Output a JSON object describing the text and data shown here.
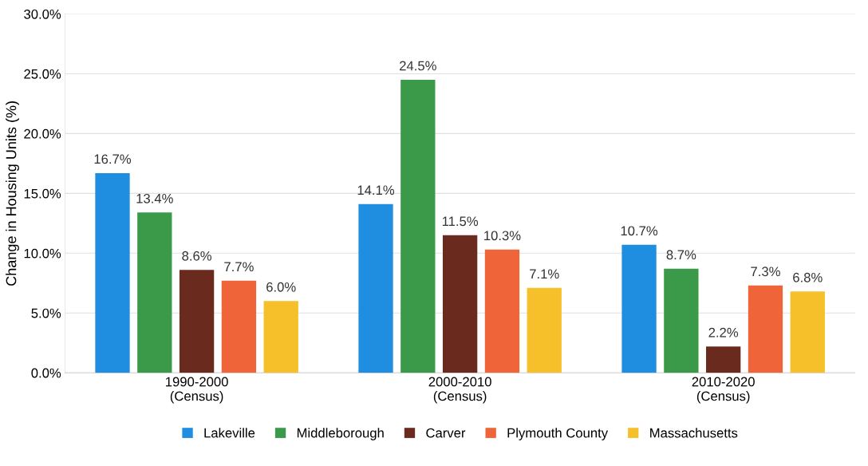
{
  "chart_data": {
    "type": "bar",
    "ylabel": "Change in Housing Units (%)",
    "categories": [
      "1990-2000\n(Census)",
      "2000-2010\n(Census)",
      "2010-2020\n(Census)"
    ],
    "series": [
      {
        "name": "Lakeville",
        "color": "#1f8ee0",
        "values": [
          16.7,
          14.1,
          10.7
        ],
        "value_labels": [
          "16.7%",
          "14.1%",
          "10.7%"
        ]
      },
      {
        "name": "Middleborough",
        "color": "#3a9a4a",
        "values": [
          13.4,
          24.5,
          8.7
        ],
        "value_labels": [
          "13.4%",
          "24.5%",
          "8.7%"
        ]
      },
      {
        "name": "Carver",
        "color": "#6b2a1e",
        "values": [
          8.6,
          11.5,
          2.2
        ],
        "value_labels": [
          "8.6%",
          "11.5%",
          "2.2%"
        ]
      },
      {
        "name": "Plymouth County",
        "color": "#f0643a",
        "values": [
          7.7,
          10.3,
          7.3
        ],
        "value_labels": [
          "7.7%",
          "10.3%",
          "7.3%"
        ]
      },
      {
        "name": "Massachusetts",
        "color": "#f5c02a",
        "values": [
          6.0,
          7.1,
          6.8
        ],
        "value_labels": [
          "6.0%",
          "7.1%",
          "6.8%"
        ]
      }
    ],
    "ylim": [
      0,
      30
    ],
    "yticks": [
      {
        "value": 0,
        "label": "0.0%"
      },
      {
        "value": 5,
        "label": "5.0%"
      },
      {
        "value": 10,
        "label": "10.0%"
      },
      {
        "value": 15,
        "label": "15.0%"
      },
      {
        "value": 20,
        "label": "20.0%"
      },
      {
        "value": 25,
        "label": "25.0%"
      },
      {
        "value": 30,
        "label": "30.0%"
      }
    ],
    "grid": "y",
    "legend": "bottom"
  }
}
